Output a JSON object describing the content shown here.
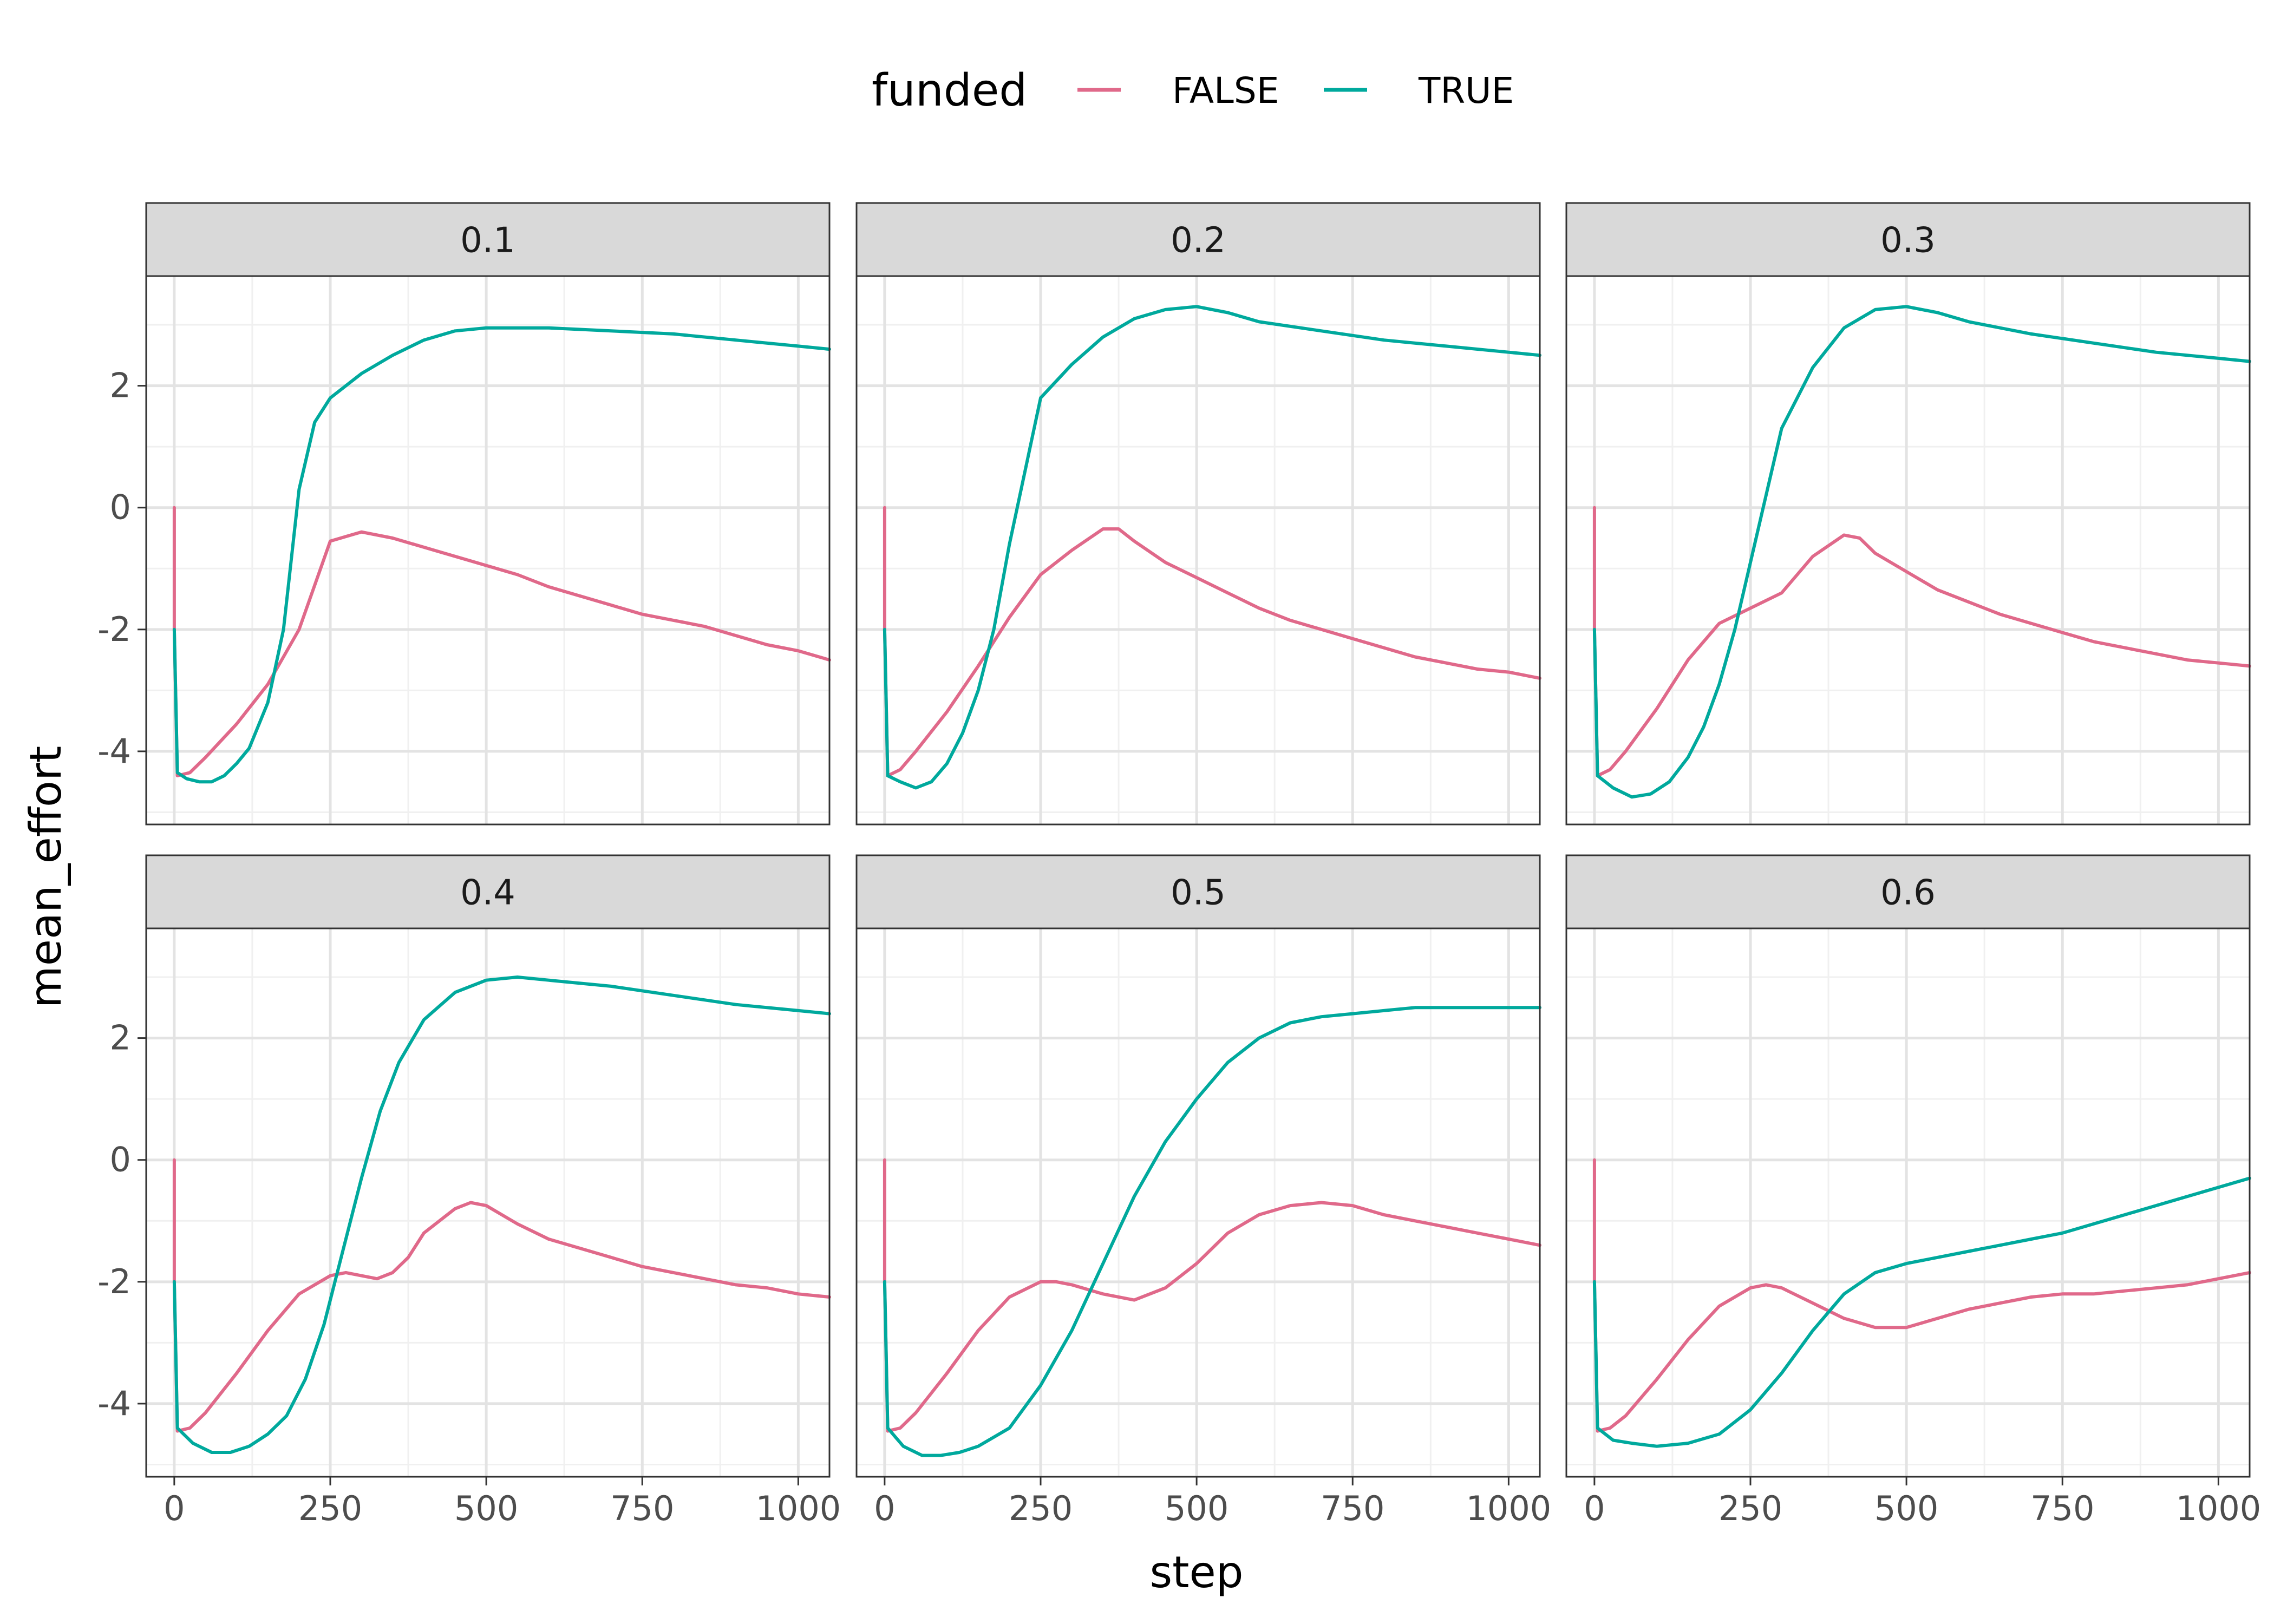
{
  "chart_data": {
    "type": "line",
    "xlabel": "step",
    "ylabel": "mean_effort",
    "xlim": [
      -45,
      1050
    ],
    "ylim": [
      -5.2,
      3.8
    ],
    "x_ticks": [
      0,
      250,
      500,
      750,
      1000
    ],
    "x_tick_labels": [
      "0",
      "250",
      "500",
      "750",
      "1000"
    ],
    "y_ticks": [
      -4,
      -2,
      0,
      2
    ],
    "y_tick_labels": [
      "-4",
      "-2",
      "0",
      "2"
    ],
    "grid": true,
    "legend": {
      "title": "funded",
      "position": "top",
      "entries": [
        {
          "label": "FALSE",
          "color": "#e0698a"
        },
        {
          "label": "TRUE",
          "color": "#00a99d"
        }
      ]
    },
    "colors": {
      "FALSE": "#e0698a",
      "TRUE": "#00a99d"
    },
    "facets": [
      {
        "label": "0.1",
        "series": [
          {
            "name": "FALSE",
            "x": [
              0,
              0,
              5,
              25,
              50,
              100,
              150,
              200,
              250,
              300,
              350,
              400,
              450,
              500,
              550,
              600,
              650,
              700,
              750,
              800,
              850,
              900,
              950,
              1000,
              1050
            ],
            "y": [
              0,
              -2,
              -4.4,
              -4.35,
              -4.1,
              -3.55,
              -2.9,
              -2.0,
              -0.55,
              -0.4,
              -0.5,
              -0.65,
              -0.8,
              -0.95,
              -1.1,
              -1.3,
              -1.45,
              -1.6,
              -1.75,
              -1.85,
              -1.95,
              -2.1,
              -2.25,
              -2.35,
              -2.5
            ]
          },
          {
            "name": "TRUE",
            "x": [
              0,
              5,
              20,
              40,
              60,
              80,
              100,
              120,
              150,
              175,
              200,
              225,
              250,
              300,
              350,
              400,
              450,
              500,
              600,
              700,
              800,
              900,
              1000,
              1050
            ],
            "y": [
              -2,
              -4.35,
              -4.45,
              -4.5,
              -4.5,
              -4.4,
              -4.2,
              -3.95,
              -3.2,
              -2.0,
              0.3,
              1.4,
              1.8,
              2.2,
              2.5,
              2.75,
              2.9,
              2.95,
              2.95,
              2.9,
              2.85,
              2.75,
              2.65,
              2.6
            ]
          }
        ]
      },
      {
        "label": "0.2",
        "series": [
          {
            "name": "FALSE",
            "x": [
              0,
              0,
              5,
              25,
              50,
              100,
              150,
              200,
              250,
              300,
              350,
              375,
              400,
              450,
              500,
              550,
              600,
              650,
              700,
              750,
              800,
              850,
              900,
              950,
              1000,
              1050
            ],
            "y": [
              0,
              -2,
              -4.4,
              -4.3,
              -4.0,
              -3.35,
              -2.6,
              -1.8,
              -1.1,
              -0.7,
              -0.35,
              -0.35,
              -0.55,
              -0.9,
              -1.15,
              -1.4,
              -1.65,
              -1.85,
              -2.0,
              -2.15,
              -2.3,
              -2.45,
              -2.55,
              -2.65,
              -2.7,
              -2.8
            ]
          },
          {
            "name": "TRUE",
            "x": [
              0,
              5,
              25,
              50,
              75,
              100,
              125,
              150,
              175,
              200,
              225,
              250,
              300,
              350,
              400,
              450,
              500,
              550,
              600,
              700,
              800,
              900,
              1000,
              1050
            ],
            "y": [
              -2,
              -4.4,
              -4.5,
              -4.6,
              -4.5,
              -4.2,
              -3.7,
              -3.0,
              -2.0,
              -0.6,
              0.6,
              1.8,
              2.35,
              2.8,
              3.1,
              3.25,
              3.3,
              3.2,
              3.05,
              2.9,
              2.75,
              2.65,
              2.55,
              2.5
            ]
          }
        ]
      },
      {
        "label": "0.3",
        "series": [
          {
            "name": "FALSE",
            "x": [
              0,
              0,
              5,
              25,
              50,
              100,
              150,
              200,
              250,
              300,
              350,
              400,
              425,
              450,
              500,
              550,
              600,
              650,
              700,
              750,
              800,
              850,
              900,
              950,
              1000,
              1050
            ],
            "y": [
              0,
              -2,
              -4.4,
              -4.3,
              -4.0,
              -3.3,
              -2.5,
              -1.9,
              -1.65,
              -1.4,
              -0.8,
              -0.45,
              -0.5,
              -0.75,
              -1.05,
              -1.35,
              -1.55,
              -1.75,
              -1.9,
              -2.05,
              -2.2,
              -2.3,
              -2.4,
              -2.5,
              -2.55,
              -2.6
            ]
          },
          {
            "name": "TRUE",
            "x": [
              0,
              5,
              30,
              60,
              90,
              120,
              150,
              175,
              200,
              225,
              250,
              275,
              300,
              350,
              400,
              450,
              500,
              550,
              600,
              700,
              800,
              900,
              1000,
              1050
            ],
            "y": [
              -2,
              -4.4,
              -4.6,
              -4.75,
              -4.7,
              -4.5,
              -4.1,
              -3.6,
              -2.9,
              -2.0,
              -0.9,
              0.2,
              1.3,
              2.3,
              2.95,
              3.25,
              3.3,
              3.2,
              3.05,
              2.85,
              2.7,
              2.55,
              2.45,
              2.4
            ]
          }
        ]
      },
      {
        "label": "0.4",
        "series": [
          {
            "name": "FALSE",
            "x": [
              0,
              0,
              5,
              25,
              50,
              100,
              150,
              200,
              250,
              275,
              300,
              325,
              350,
              375,
              400,
              450,
              475,
              500,
              550,
              600,
              650,
              700,
              750,
              800,
              850,
              900,
              950,
              1000,
              1050
            ],
            "y": [
              0,
              -2,
              -4.45,
              -4.4,
              -4.15,
              -3.5,
              -2.8,
              -2.2,
              -1.9,
              -1.85,
              -1.9,
              -1.95,
              -1.85,
              -1.6,
              -1.2,
              -0.8,
              -0.7,
              -0.75,
              -1.05,
              -1.3,
              -1.45,
              -1.6,
              -1.75,
              -1.85,
              -1.95,
              -2.05,
              -2.1,
              -2.2,
              -2.25
            ]
          },
          {
            "name": "TRUE",
            "x": [
              0,
              5,
              30,
              60,
              90,
              120,
              150,
              180,
              210,
              240,
              270,
              300,
              330,
              360,
              400,
              450,
              500,
              550,
              600,
              700,
              800,
              900,
              1000,
              1050
            ],
            "y": [
              -2,
              -4.4,
              -4.65,
              -4.8,
              -4.8,
              -4.7,
              -4.5,
              -4.2,
              -3.6,
              -2.7,
              -1.5,
              -0.3,
              0.8,
              1.6,
              2.3,
              2.75,
              2.95,
              3.0,
              2.95,
              2.85,
              2.7,
              2.55,
              2.45,
              2.4
            ]
          }
        ]
      },
      {
        "label": "0.5",
        "series": [
          {
            "name": "FALSE",
            "x": [
              0,
              0,
              5,
              25,
              50,
              100,
              150,
              200,
              250,
              275,
              300,
              350,
              400,
              450,
              500,
              550,
              600,
              650,
              700,
              750,
              800,
              850,
              900,
              950,
              1000,
              1050
            ],
            "y": [
              0,
              -2,
              -4.45,
              -4.4,
              -4.15,
              -3.5,
              -2.8,
              -2.25,
              -2.0,
              -2.0,
              -2.05,
              -2.2,
              -2.3,
              -2.1,
              -1.7,
              -1.2,
              -0.9,
              -0.75,
              -0.7,
              -0.75,
              -0.9,
              -1.0,
              -1.1,
              -1.2,
              -1.3,
              -1.4
            ]
          },
          {
            "name": "TRUE",
            "x": [
              0,
              5,
              30,
              60,
              90,
              120,
              150,
              200,
              250,
              300,
              350,
              400,
              450,
              500,
              550,
              600,
              650,
              700,
              750,
              800,
              850,
              900,
              950,
              1000,
              1050
            ],
            "y": [
              -2,
              -4.4,
              -4.7,
              -4.85,
              -4.85,
              -4.8,
              -4.7,
              -4.4,
              -3.7,
              -2.8,
              -1.7,
              -0.6,
              0.3,
              1.0,
              1.6,
              2.0,
              2.25,
              2.35,
              2.4,
              2.45,
              2.5,
              2.5,
              2.5,
              2.5,
              2.5
            ]
          }
        ]
      },
      {
        "label": "0.6",
        "series": [
          {
            "name": "FALSE",
            "x": [
              0,
              0,
              5,
              25,
              50,
              100,
              150,
              200,
              250,
              275,
              300,
              350,
              400,
              450,
              500,
              550,
              600,
              650,
              700,
              750,
              800,
              850,
              900,
              950,
              1000,
              1050
            ],
            "y": [
              0,
              -2,
              -4.45,
              -4.4,
              -4.2,
              -3.6,
              -2.95,
              -2.4,
              -2.1,
              -2.05,
              -2.1,
              -2.35,
              -2.6,
              -2.75,
              -2.75,
              -2.6,
              -2.45,
              -2.35,
              -2.25,
              -2.2,
              -2.2,
              -2.15,
              -2.1,
              -2.05,
              -1.95,
              -1.85
            ]
          },
          {
            "name": "TRUE",
            "x": [
              0,
              5,
              30,
              60,
              100,
              150,
              200,
              250,
              300,
              350,
              400,
              450,
              500,
              550,
              600,
              650,
              700,
              750,
              800,
              850,
              900,
              950,
              1000,
              1050
            ],
            "y": [
              -2,
              -4.4,
              -4.6,
              -4.65,
              -4.7,
              -4.65,
              -4.5,
              -4.1,
              -3.5,
              -2.8,
              -2.2,
              -1.85,
              -1.7,
              -1.6,
              -1.5,
              -1.4,
              -1.3,
              -1.2,
              -1.05,
              -0.9,
              -0.75,
              -0.6,
              -0.45,
              -0.3
            ]
          }
        ]
      }
    ]
  }
}
